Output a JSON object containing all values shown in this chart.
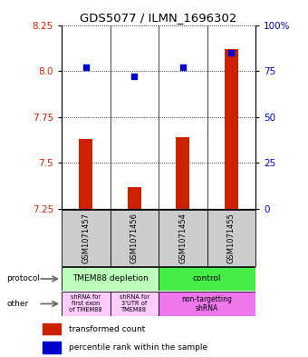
{
  "title": "GDS5077 / ILMN_1696302",
  "samples": [
    "GSM1071457",
    "GSM1071456",
    "GSM1071454",
    "GSM1071455"
  ],
  "bar_values": [
    7.63,
    7.37,
    7.64,
    8.12
  ],
  "bar_bottom": [
    7.25,
    7.25,
    7.25,
    7.25
  ],
  "dot_values": [
    8.02,
    7.97,
    8.02,
    8.1
  ],
  "ylim": [
    7.25,
    8.25
  ],
  "yticks_left": [
    7.25,
    7.5,
    7.75,
    8.0,
    8.25
  ],
  "yticks_right": [
    0,
    25,
    50,
    75,
    100
  ],
  "right_ylab_pct": [
    "0",
    "25",
    "50",
    "75",
    "100%"
  ],
  "bar_color": "#cc2200",
  "dot_color": "#0000cc",
  "protocol_labels": [
    "TMEM88 depletion",
    "control"
  ],
  "protocol_color_left": "#bbffbb",
  "protocol_color_right": "#44ee44",
  "other_labels": [
    "shRNA for\nfirst exon\nof TMEM88",
    "shRNA for\n3'UTR of\nTMEM88",
    "non-targetting\nshRNA"
  ],
  "other_color_left": "#ffccff",
  "other_color_right": "#ee77ee",
  "legend_red_label": "transformed count",
  "legend_blue_label": "percentile rank within the sample",
  "protocol_arrow_label": "protocol",
  "other_arrow_label": "other",
  "tick_label_color_left": "#cc2200",
  "tick_label_color_right": "#0000cc",
  "sample_bg": "#cccccc"
}
